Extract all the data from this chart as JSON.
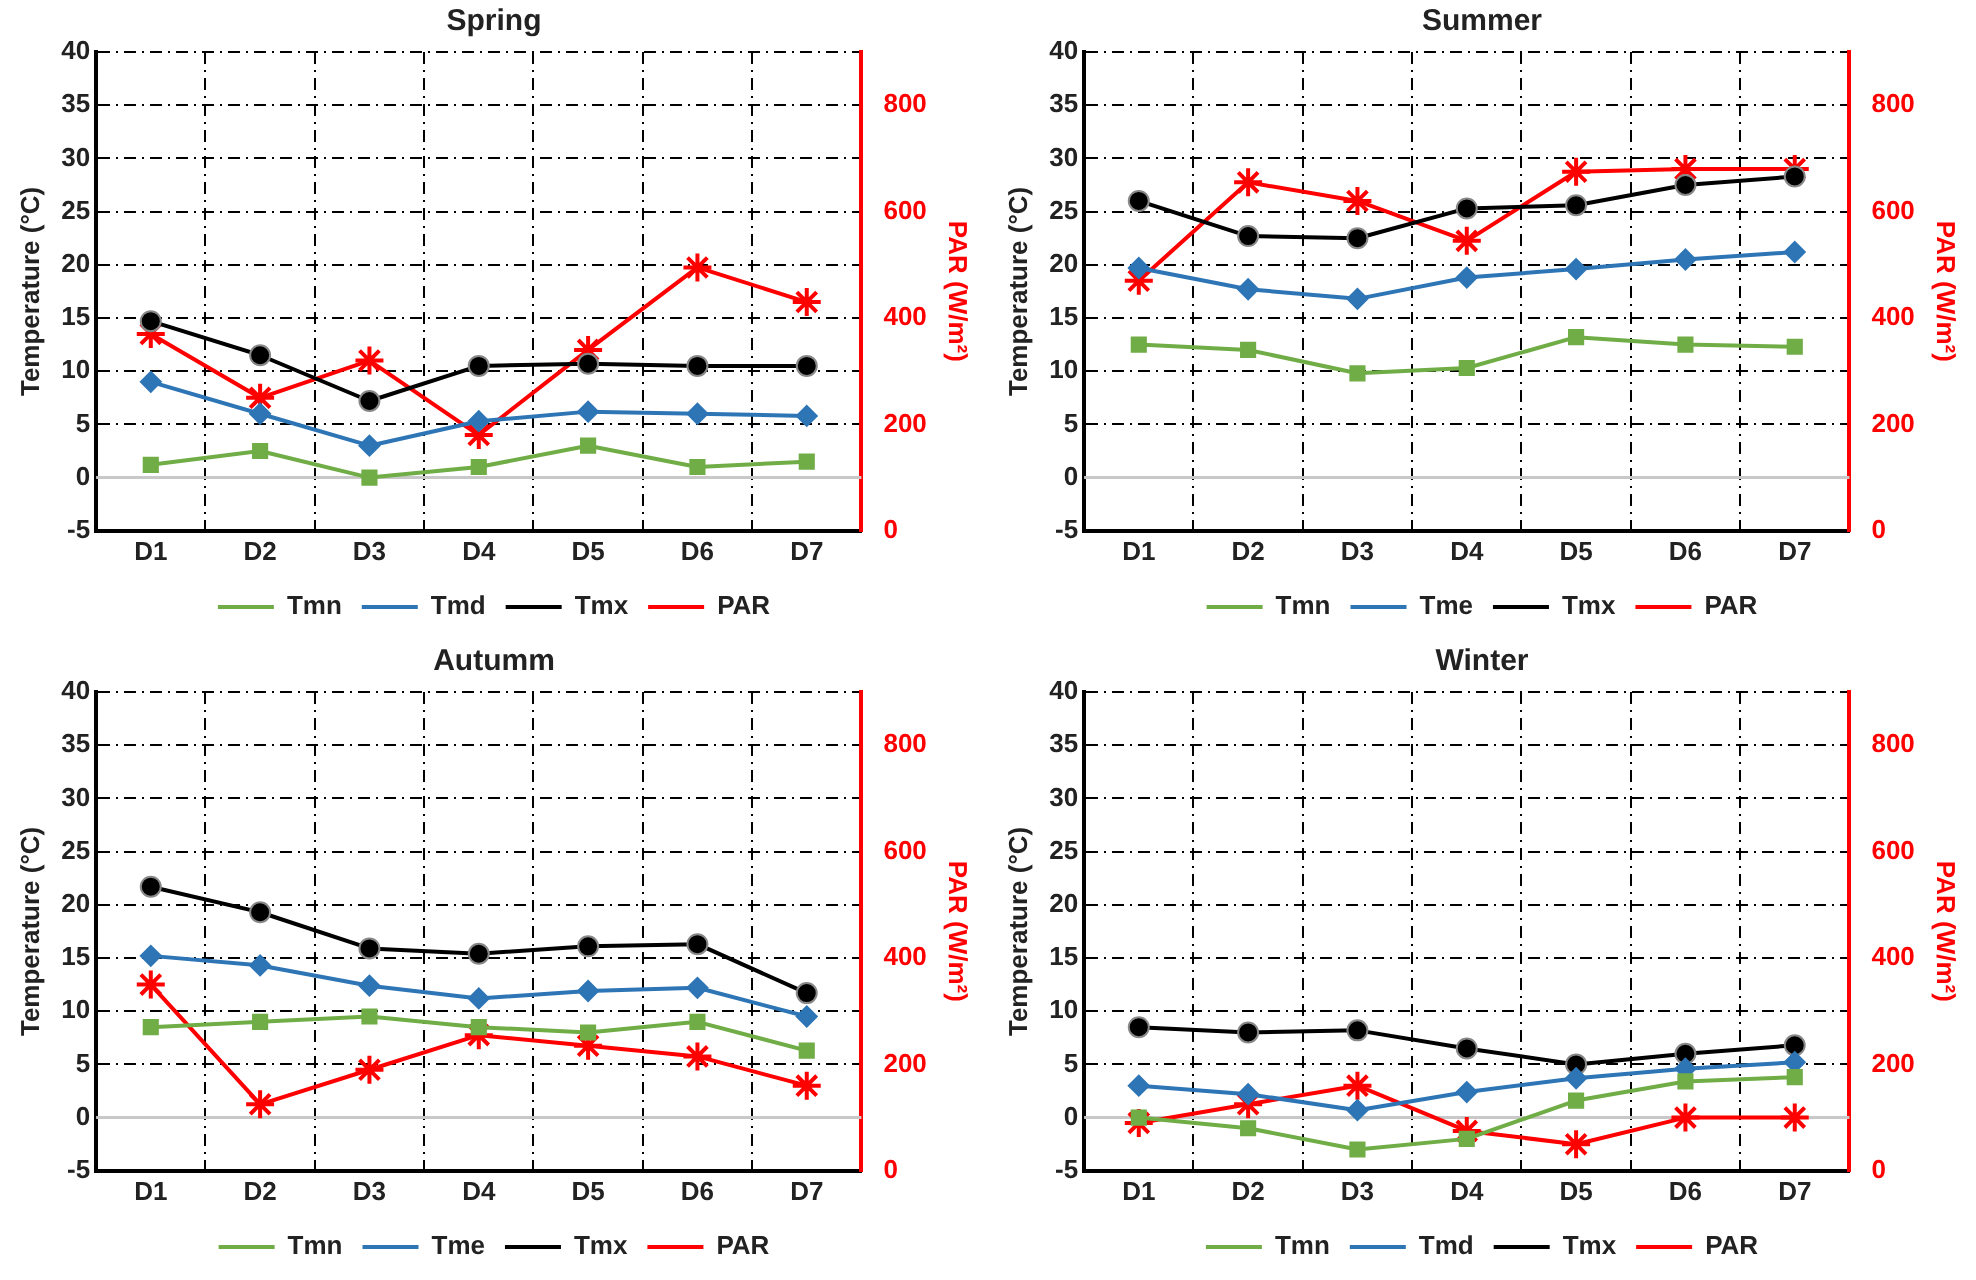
{
  "chart_data": [
    {
      "type": "line",
      "title": "Spring",
      "ylabel": "Temperature (°C)",
      "y2label": "PAR (W/m²)",
      "categories": [
        "D1",
        "D2",
        "D3",
        "D4",
        "D5",
        "D6",
        "D7"
      ],
      "ylim": [
        -5,
        40
      ],
      "yticks": [
        -5,
        0,
        5,
        10,
        15,
        20,
        25,
        30,
        35,
        40
      ],
      "y2lim": [
        0,
        900
      ],
      "y2ticks": [
        0,
        200,
        400,
        600,
        800
      ],
      "grid": true,
      "legend": "bottom",
      "line_style": "solid",
      "series": [
        {
          "name": "Tmn",
          "color": "#70ad47",
          "marker": "square",
          "values": [
            1.2,
            2.5,
            0,
            1,
            3,
            1,
            1.5
          ]
        },
        {
          "name": "Tmd",
          "color": "#2e75b6",
          "marker": "diamond",
          "values": [
            9,
            6,
            3,
            5.3,
            6.2,
            6,
            5.8
          ]
        },
        {
          "name": "Tmx",
          "color": "#000000",
          "marker": "circle",
          "values": [
            14.7,
            11.5,
            7.2,
            10.5,
            10.7,
            10.5,
            10.5
          ]
        },
        {
          "name": "PAR",
          "color": "#ff0000",
          "marker": "cross",
          "axis": "y2",
          "values": [
            370,
            250,
            320,
            180,
            340,
            495,
            430
          ]
        }
      ],
      "ref_lines": [
        {
          "axis": "y",
          "value": 0,
          "color": "#c8c8c8"
        }
      ]
    },
    {
      "type": "line",
      "title": "Summer",
      "ylabel": "Temperature (°C)",
      "y2label": "PAR (W/m²)",
      "categories": [
        "D1",
        "D2",
        "D3",
        "D4",
        "D5",
        "D6",
        "D7"
      ],
      "ylim": [
        -5,
        40
      ],
      "yticks": [
        -5,
        0,
        5,
        10,
        15,
        20,
        25,
        30,
        35,
        40
      ],
      "y2lim": [
        0,
        900
      ],
      "y2ticks": [
        0,
        200,
        400,
        600,
        800
      ],
      "grid": true,
      "legend": "bottom",
      "line_style": "solid",
      "series": [
        {
          "name": "Tmn",
          "color": "#70ad47",
          "marker": "square",
          "values": [
            12.5,
            12,
            9.8,
            10.3,
            13.2,
            12.5,
            12.3
          ]
        },
        {
          "name": "Tme",
          "color": "#2e75b6",
          "marker": "diamond",
          "values": [
            19.7,
            17.7,
            16.8,
            18.8,
            19.6,
            20.5,
            21.2
          ]
        },
        {
          "name": "Tmx",
          "color": "#000000",
          "marker": "circle",
          "values": [
            26,
            22.7,
            22.5,
            25.3,
            25.6,
            27.5,
            28.3
          ]
        },
        {
          "name": "PAR",
          "color": "#ff0000",
          "marker": "cross",
          "axis": "y2",
          "values": [
            470,
            655,
            620,
            545,
            675,
            680,
            680
          ]
        }
      ],
      "ref_lines": [
        {
          "axis": "y",
          "value": 0,
          "color": "#c8c8c8"
        }
      ]
    },
    {
      "type": "line",
      "title": "Autumm",
      "ylabel": "Temperature (°C)",
      "y2label": "PAR (W/m²)",
      "categories": [
        "D1",
        "D2",
        "D3",
        "D4",
        "D5",
        "D6",
        "D7"
      ],
      "ylim": [
        -5,
        40
      ],
      "yticks": [
        -5,
        0,
        5,
        10,
        15,
        20,
        25,
        30,
        35,
        40
      ],
      "y2lim": [
        0,
        900
      ],
      "y2ticks": [
        0,
        200,
        400,
        600,
        800
      ],
      "grid": true,
      "legend": "bottom",
      "line_style": "solid",
      "series": [
        {
          "name": "Tmn",
          "color": "#70ad47",
          "marker": "square",
          "values": [
            8.5,
            9,
            9.5,
            8.5,
            8,
            9,
            6.3
          ]
        },
        {
          "name": "Tme",
          "color": "#2e75b6",
          "marker": "diamond",
          "values": [
            15.2,
            14.3,
            12.4,
            11.2,
            11.9,
            12.2,
            9.5
          ]
        },
        {
          "name": "Tmx",
          "color": "#000000",
          "marker": "circle",
          "values": [
            21.7,
            19.3,
            15.9,
            15.4,
            16.1,
            16.3,
            11.7
          ]
        },
        {
          "name": "PAR",
          "color": "#ff0000",
          "marker": "cross",
          "axis": "y2",
          "values": [
            350,
            125,
            190,
            255,
            235,
            215,
            160
          ]
        }
      ],
      "ref_lines": [
        {
          "axis": "y",
          "value": 0,
          "color": "#c8c8c8"
        }
      ]
    },
    {
      "type": "line",
      "title": "Winter",
      "ylabel": "Temperature (°C)",
      "y2label": "PAR (W/m²)",
      "categories": [
        "D1",
        "D2",
        "D3",
        "D4",
        "D5",
        "D6",
        "D7"
      ],
      "ylim": [
        -5,
        40
      ],
      "yticks": [
        -5,
        0,
        5,
        10,
        15,
        20,
        25,
        30,
        35,
        40
      ],
      "y2lim": [
        0,
        900
      ],
      "y2ticks": [
        0,
        200,
        400,
        600,
        800
      ],
      "grid": true,
      "legend": "bottom",
      "line_style": "solid",
      "series": [
        {
          "name": "Tmn",
          "color": "#70ad47",
          "marker": "square",
          "values": [
            0,
            -1,
            -3,
            -2,
            1.6,
            3.4,
            3.8
          ]
        },
        {
          "name": "Tmd",
          "color": "#2e75b6",
          "marker": "diamond",
          "values": [
            3,
            2.2,
            0.7,
            2.4,
            3.7,
            4.6,
            5.2
          ]
        },
        {
          "name": "Tmx",
          "color": "#000000",
          "marker": "circle",
          "values": [
            8.5,
            8,
            8.2,
            6.5,
            5,
            6,
            6.8
          ]
        },
        {
          "name": "PAR",
          "color": "#ff0000",
          "marker": "cross",
          "axis": "y2",
          "values": [
            90,
            125,
            160,
            75,
            50,
            100,
            100
          ]
        }
      ],
      "ref_lines": [
        {
          "axis": "y",
          "value": 0,
          "color": "#c8c8c8"
        }
      ]
    }
  ]
}
